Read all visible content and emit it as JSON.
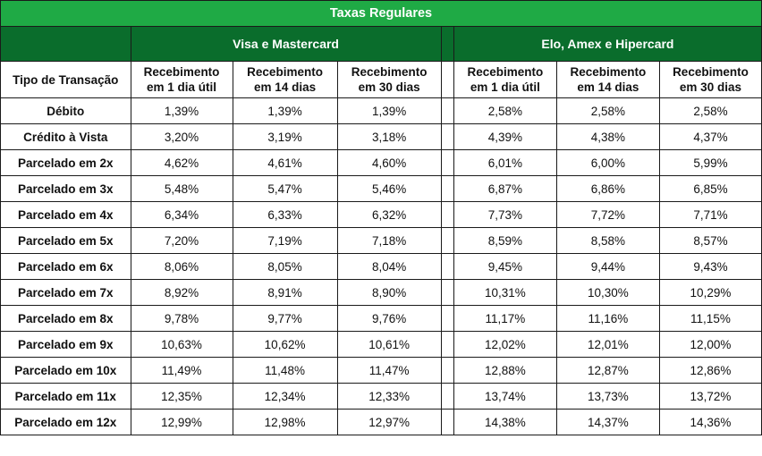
{
  "title": "Taxas Regulares",
  "groups": [
    "Visa e Mastercard",
    "Elo, Amex e Hipercard"
  ],
  "type_header": "Tipo de Transação",
  "column_headers": [
    {
      "line1": "Recebimento",
      "line2": "em 1 dia útil"
    },
    {
      "line1": "Recebimento",
      "line2": "em 14 dias"
    },
    {
      "line1": "Recebimento",
      "line2": "em 30 dias"
    },
    {
      "line1": "Recebimento",
      "line2": "em 1 dia útil"
    },
    {
      "line1": "Recebimento",
      "line2": "em 14 dias"
    },
    {
      "line1": "Recebimento",
      "line2": "em 30 dias"
    }
  ],
  "rows": [
    {
      "type": "Débito",
      "values": [
        "1,39%",
        "1,39%",
        "1,39%",
        "2,58%",
        "2,58%",
        "2,58%"
      ]
    },
    {
      "type": "Crédito à Vista",
      "values": [
        "3,20%",
        "3,19%",
        "3,18%",
        "4,39%",
        "4,38%",
        "4,37%"
      ]
    },
    {
      "type": "Parcelado em 2x",
      "values": [
        "4,62%",
        "4,61%",
        "4,60%",
        "6,01%",
        "6,00%",
        "5,99%"
      ]
    },
    {
      "type": "Parcelado em 3x",
      "values": [
        "5,48%",
        "5,47%",
        "5,46%",
        "6,87%",
        "6,86%",
        "6,85%"
      ]
    },
    {
      "type": "Parcelado em 4x",
      "values": [
        "6,34%",
        "6,33%",
        "6,32%",
        "7,73%",
        "7,72%",
        "7,71%"
      ]
    },
    {
      "type": "Parcelado em 5x",
      "values": [
        "7,20%",
        "7,19%",
        "7,18%",
        "8,59%",
        "8,58%",
        "8,57%"
      ]
    },
    {
      "type": "Parcelado em 6x",
      "values": [
        "8,06%",
        "8,05%",
        "8,04%",
        "9,45%",
        "9,44%",
        "9,43%"
      ]
    },
    {
      "type": "Parcelado em 7x",
      "values": [
        "8,92%",
        "8,91%",
        "8,90%",
        "10,31%",
        "10,30%",
        "10,29%"
      ]
    },
    {
      "type": "Parcelado em 8x",
      "values": [
        "9,78%",
        "9,77%",
        "9,76%",
        "11,17%",
        "11,16%",
        "11,15%"
      ]
    },
    {
      "type": "Parcelado em 9x",
      "values": [
        "10,63%",
        "10,62%",
        "10,61%",
        "12,02%",
        "12,01%",
        "12,00%"
      ]
    },
    {
      "type": "Parcelado em 10x",
      "values": [
        "11,49%",
        "11,48%",
        "11,47%",
        "12,88%",
        "12,87%",
        "12,86%"
      ]
    },
    {
      "type": "Parcelado em 11x",
      "values": [
        "12,35%",
        "12,34%",
        "12,33%",
        "13,74%",
        "13,73%",
        "13,72%"
      ]
    },
    {
      "type": "Parcelado em 12x",
      "values": [
        "12,99%",
        "12,98%",
        "12,97%",
        "14,38%",
        "14,37%",
        "14,36%"
      ]
    }
  ],
  "colors": {
    "title_bg": "#1faa45",
    "group_bg": "#0a6d2c",
    "header_text": "#ffffff",
    "border": "#1a1a1a"
  }
}
